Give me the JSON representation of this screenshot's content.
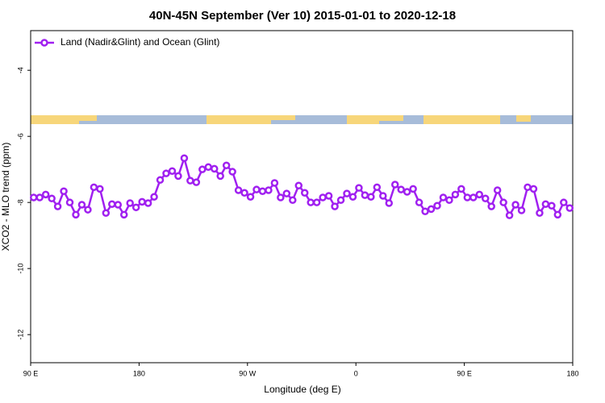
{
  "chart_data": {
    "type": "line",
    "title": "40N-45N September (Ver 10)   2015-01-01 to 2020-12-18",
    "x_label": "Longitude (deg E)",
    "y_label": "XCO2 - MLO trend (ppm)",
    "xlim": [
      90,
      540
    ],
    "xticks": [
      {
        "value": 90,
        "label": "90 E"
      },
      {
        "value": 180,
        "label": "180"
      },
      {
        "value": 270,
        "label": "90 W"
      },
      {
        "value": 360,
        "label": "0"
      },
      {
        "value": 450,
        "label": "90 E"
      },
      {
        "value": 540,
        "label": "180"
      }
    ],
    "ylim": [
      -12.85,
      -2.8
    ],
    "yticks": [
      -12,
      -10,
      -8,
      -6,
      -4
    ],
    "legend": "upper left",
    "x": [
      92.5,
      97.5,
      102.5,
      107.5,
      112.5,
      117.5,
      122.5,
      127.5,
      132.5,
      137.5,
      142.5,
      147.5,
      152.5,
      157.5,
      162.5,
      167.5,
      172.5,
      177.5,
      182.5,
      187.5,
      192.5,
      197.5,
      202.5,
      207.5,
      212.5,
      217.5,
      222.5,
      227.5,
      232.5,
      237.5,
      242.5,
      247.5,
      252.5,
      257.5,
      262.5,
      267.5,
      272.5,
      277.5,
      282.5,
      287.5,
      292.5,
      297.5,
      302.5,
      307.5,
      312.5,
      317.5,
      322.5,
      327.5,
      332.5,
      337.5,
      342.5,
      347.5,
      352.5,
      357.5,
      362.5,
      367.5,
      372.5,
      377.5,
      382.5,
      387.5,
      392.5,
      397.5,
      402.5,
      407.5,
      412.5,
      417.5,
      422.5,
      427.5,
      432.5,
      437.5,
      442.5,
      447.5,
      452.5,
      457.5,
      462.5,
      467.5,
      472.5,
      477.5,
      482.5,
      487.5,
      492.5,
      497.5,
      502.5,
      507.5,
      512.5,
      517.5,
      522.5,
      527.5,
      532.5,
      537.5
    ],
    "series": [
      {
        "name": "Land (Nadir&Glint) and Ocean (Glint)",
        "color": "#a020f0",
        "values": [
          -7.85,
          -7.85,
          -7.76,
          -7.88,
          -8.12,
          -7.66,
          -8.0,
          -8.37,
          -8.07,
          -8.22,
          -7.54,
          -7.59,
          -8.32,
          -8.05,
          -8.07,
          -8.37,
          -8.02,
          -8.15,
          -7.98,
          -8.02,
          -7.83,
          -7.32,
          -7.12,
          -7.05,
          -7.2,
          -6.66,
          -7.34,
          -7.39,
          -7.0,
          -6.93,
          -6.98,
          -7.2,
          -6.88,
          -7.07,
          -7.63,
          -7.71,
          -7.83,
          -7.61,
          -7.66,
          -7.63,
          -7.41,
          -7.85,
          -7.73,
          -7.93,
          -7.49,
          -7.71,
          -8.0,
          -8.0,
          -7.85,
          -7.8,
          -8.12,
          -7.93,
          -7.73,
          -7.83,
          -7.56,
          -7.78,
          -7.83,
          -7.54,
          -7.8,
          -8.02,
          -7.46,
          -7.61,
          -7.68,
          -7.59,
          -8.0,
          -8.27,
          -8.2,
          -8.1,
          -7.85,
          -7.93,
          -7.76,
          -7.59,
          -7.85,
          -7.85,
          -7.76,
          -7.88,
          -8.12,
          -7.63,
          -8.0,
          -8.39,
          -8.07,
          -8.24,
          -7.54,
          -7.59,
          -8.32,
          -8.05,
          -8.1,
          -8.37,
          -8.0,
          -8.17
        ]
      }
    ]
  }
}
